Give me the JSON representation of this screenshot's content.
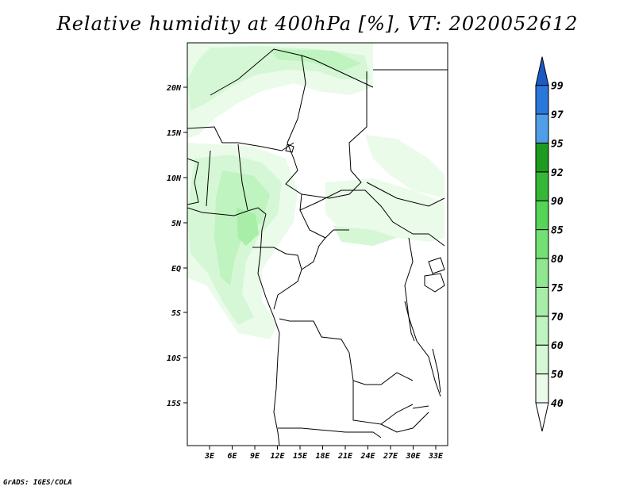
{
  "title": "Relative humidity at 400hPa [%], VT: 2020052612",
  "credit": "GrADS: IGES/COLA",
  "map": {
    "lat_labels": [
      "20N",
      "15N",
      "10N",
      "5N",
      "EQ",
      "5S",
      "10S",
      "15S"
    ],
    "lon_labels": [
      "3E",
      "6E",
      "9E",
      "12E",
      "15E",
      "18E",
      "21E",
      "24E",
      "27E",
      "30E",
      "33E"
    ]
  },
  "colorbar": {
    "levels": [
      "40",
      "50",
      "60",
      "70",
      "75",
      "80",
      "85",
      "90",
      "92",
      "95",
      "97",
      "99"
    ],
    "colors": {
      "below_40": "#ffffff",
      "40_50": "#eafbea",
      "50_60": "#d5f7d5",
      "60_70": "#bff3bf",
      "70_75": "#a8eea8",
      "75_80": "#8fe88f",
      "80_85": "#74e074",
      "85_90": "#56d456",
      "90_92": "#36b836",
      "92_95": "#1e9b1e",
      "95_97": "#4f9fe8",
      "97_99": "#2a78dc",
      "above_99": "#1a5cc4"
    }
  }
}
